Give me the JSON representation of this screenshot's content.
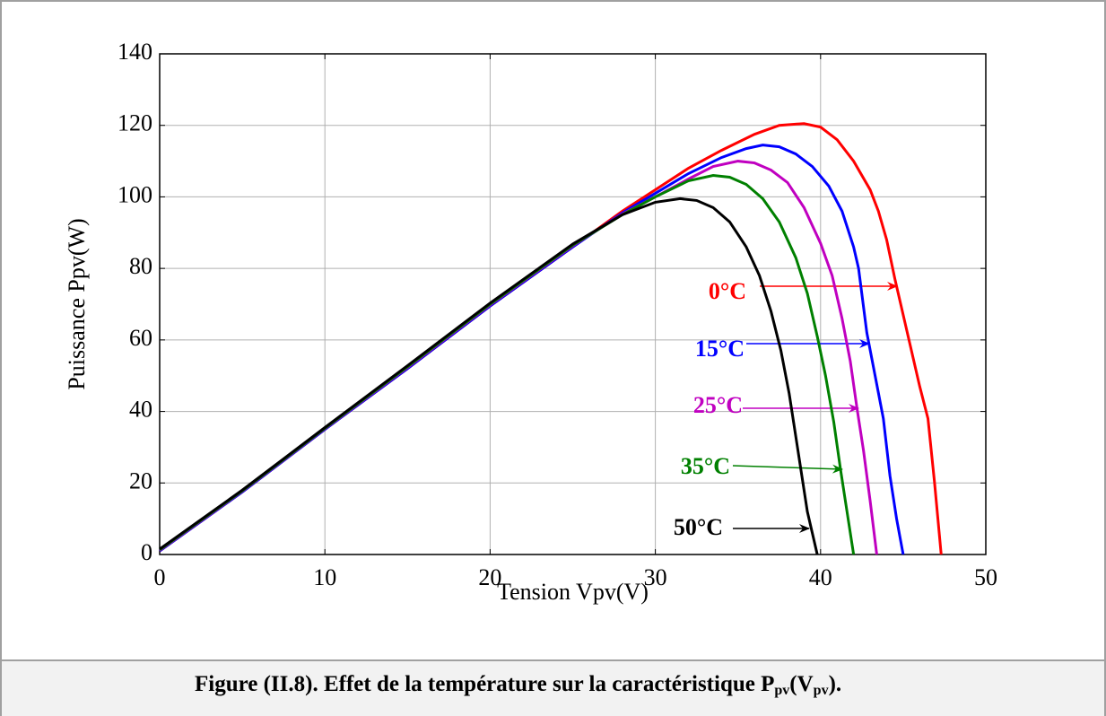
{
  "chart_data": {
    "type": "line",
    "xlabel": "Tension Vpv(V)",
    "ylabel": "Puissance Ppv(W)",
    "xlim": [
      0,
      50
    ],
    "xticks": [
      0,
      10,
      20,
      30,
      40,
      50
    ],
    "ylim": [
      0,
      140
    ],
    "yticks": [
      0,
      20,
      40,
      60,
      80,
      100,
      120,
      140
    ],
    "grid": true,
    "series": [
      {
        "name": "0°C",
        "color": "#ff0000",
        "x": [
          0,
          5,
          10,
          15,
          20,
          25,
          28,
          30,
          32,
          34,
          36,
          37.5,
          39,
          40,
          41,
          42,
          43,
          43.5,
          44,
          44.5,
          45,
          45.5,
          46,
          46.5,
          46.9,
          47.1,
          47.3
        ],
        "values": [
          1,
          17.5,
          35,
          52,
          69.5,
          86,
          96,
          102,
          108,
          113,
          117.5,
          120,
          120.5,
          119.5,
          116,
          110,
          102,
          96,
          88,
          77,
          67,
          57,
          47,
          38,
          20,
          10,
          0
        ]
      },
      {
        "name": "15°C",
        "color": "#0000ff",
        "x": [
          0,
          5,
          10,
          15,
          20,
          25,
          28,
          30,
          32,
          34,
          35.5,
          36.5,
          37.5,
          38.5,
          39.5,
          40.5,
          41.3,
          42,
          42.3,
          42.8,
          43.3,
          43.8,
          44.2,
          44.6,
          45
        ],
        "values": [
          1,
          17.5,
          35,
          52,
          69.5,
          86,
          95.5,
          101,
          106.5,
          111,
          113.5,
          114.5,
          114,
          112,
          108.5,
          103,
          96,
          86,
          80,
          62,
          50,
          38,
          22,
          10,
          0
        ]
      },
      {
        "name": "25°C",
        "color": "#c000c0",
        "x": [
          0,
          5,
          10,
          15,
          20,
          25,
          28,
          30,
          32,
          33.5,
          35,
          36,
          37,
          38,
          39,
          40,
          40.7,
          41.3,
          41.8,
          42.2,
          42.6,
          43,
          43.4
        ],
        "values": [
          1.2,
          17.7,
          35.2,
          52.3,
          69.8,
          86.3,
          95.2,
          100,
          105,
          108.5,
          110,
          109.5,
          107.5,
          104,
          97,
          87,
          78,
          66,
          54,
          41,
          29,
          15,
          0
        ]
      },
      {
        "name": "35°C",
        "color": "#008000",
        "x": [
          0,
          5,
          10,
          15,
          20,
          25,
          28,
          30,
          32,
          33.5,
          34.5,
          35.5,
          36.5,
          37.5,
          38.5,
          39.2,
          39.8,
          40.3,
          40.8,
          41.2,
          41.6,
          42
        ],
        "values": [
          1.3,
          17.8,
          35.3,
          52.5,
          70,
          86.5,
          95,
          100,
          104.5,
          106,
          105.5,
          103.5,
          99.5,
          93,
          83,
          73,
          61,
          50,
          37,
          24,
          12,
          0
        ]
      },
      {
        "name": "50°C",
        "color": "#000000",
        "x": [
          0,
          5,
          10,
          15,
          20,
          25,
          28,
          30,
          31.5,
          32.5,
          33.5,
          34.5,
          35.5,
          36.3,
          37,
          37.6,
          38.1,
          38.6,
          39.2,
          39.5,
          39.8
        ],
        "values": [
          1.5,
          18,
          35.5,
          52.8,
          70.3,
          86.8,
          95,
          98.5,
          99.5,
          99,
          97,
          93,
          86,
          78,
          68,
          57,
          45,
          30,
          12,
          6,
          0
        ]
      }
    ]
  },
  "caption": {
    "parts": [
      "Figure (II.8). Effet de la température sur la caractéristique P",
      "pv",
      "(V",
      "pv",
      ")."
    ]
  }
}
